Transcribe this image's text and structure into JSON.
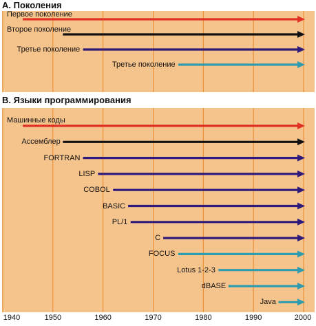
{
  "colors": {
    "panel_background": "#F5C38C",
    "grid_line": "#E8882A",
    "first_generation": "#E03127",
    "second_generation": "#111111",
    "third_generation": "#2E1A7A",
    "fourth_generation": "#2F9BAE"
  },
  "axis": {
    "ticks": [
      "1940",
      "1950",
      "1960",
      "1970",
      "1980",
      "1990",
      "2000"
    ],
    "range": [
      1940,
      2000
    ]
  },
  "sections": [
    {
      "title": "А. Поколения",
      "bars": [
        {
          "label": "Первое поколение",
          "start": 1944,
          "end": 2000,
          "color": "#E03127"
        },
        {
          "label": "Второе поколение",
          "start": 1952,
          "end": 2000,
          "color": "#111111"
        },
        {
          "label": "Третье поколение",
          "start": 1956,
          "end": 2000,
          "color": "#2E1A7A"
        },
        {
          "label": "Третье поколение",
          "start": 1975,
          "end": 2000,
          "color": "#2F9BAE"
        }
      ]
    },
    {
      "title": "B. Языки программирования",
      "bars": [
        {
          "label": "Машинные коды",
          "start": 1944,
          "end": 2000,
          "color": "#E03127"
        },
        {
          "label": "Ассемблер",
          "start": 1952,
          "end": 2000,
          "color": "#111111"
        },
        {
          "label": "FORTRAN",
          "start": 1956,
          "end": 2000,
          "color": "#2E1A7A"
        },
        {
          "label": "LISP",
          "start": 1959,
          "end": 2000,
          "color": "#2E1A7A"
        },
        {
          "label": "COBOL",
          "start": 1962,
          "end": 2000,
          "color": "#2E1A7A"
        },
        {
          "label": "BASIC",
          "start": 1965,
          "end": 2000,
          "color": "#2E1A7A"
        },
        {
          "label": "PL/1",
          "start": 1965.5,
          "end": 2000,
          "color": "#2E1A7A"
        },
        {
          "label": "C",
          "start": 1972,
          "end": 2000,
          "color": "#2E1A7A"
        },
        {
          "label": "FOCUS",
          "start": 1975,
          "end": 2000,
          "color": "#2F9BAE"
        },
        {
          "label": "Lotus 1-2-3",
          "start": 1983,
          "end": 2000,
          "color": "#2F9BAE"
        },
        {
          "label": "dBASE",
          "start": 1985,
          "end": 2000,
          "color": "#2F9BAE"
        },
        {
          "label": "Java",
          "start": 1995,
          "end": 2000,
          "color": "#2F9BAE"
        }
      ]
    }
  ]
}
